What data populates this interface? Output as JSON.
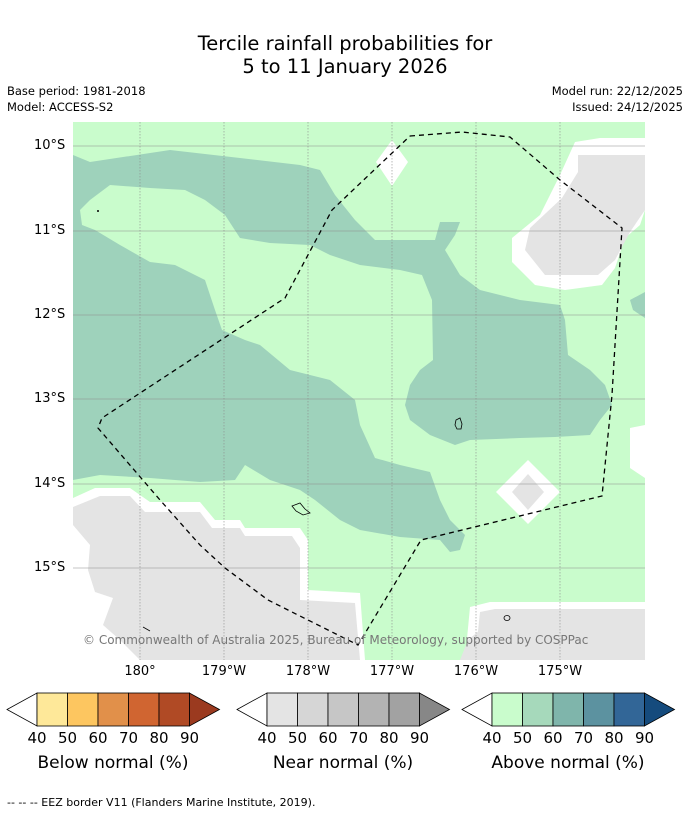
{
  "title_line1": "Tercile rainfall probabilities for",
  "title_line2": "5 to 11 January 2026",
  "base_period": "Base period: 1981-2018",
  "model": "Model: ACCESS-S2",
  "model_run": "Model run: 22/12/2025",
  "issued": "Issued: 24/12/2025",
  "lat_labels": [
    "10°S",
    "11°S",
    "12°S",
    "13°S",
    "14°S",
    "15°S"
  ],
  "lon_labels": [
    "180°",
    "179°W",
    "178°W",
    "177°W",
    "176°W",
    "175°W"
  ],
  "copyright": "© Commonwealth of Australia 2025, Bureau of Meteorology, supported by COSPPac",
  "colorbars": [
    {
      "title": "Below normal (%)",
      "ticks": [
        "40",
        "50",
        "60",
        "70",
        "80",
        "90"
      ],
      "colors": [
        "#fee899",
        "#fdc660",
        "#e1904a",
        "#d06531",
        "#b04a25",
        "#9b3a1f"
      ]
    },
    {
      "title": "Near normal (%)",
      "ticks": [
        "40",
        "50",
        "60",
        "70",
        "80",
        "90"
      ],
      "colors": [
        "#e4e4e4",
        "#d6d6d6",
        "#c6c6c6",
        "#b3b3b3",
        "#a2a2a2",
        "#878787"
      ]
    },
    {
      "title": "Above normal (%)",
      "ticks": [
        "40",
        "50",
        "60",
        "70",
        "80",
        "90"
      ],
      "colors": [
        "#c9fccc",
        "#a6d9bb",
        "#7fb5ab",
        "#5c92a0",
        "#326697",
        "#154b7d"
      ]
    }
  ],
  "footnote": "--  --  -- EEZ border V11 (Flanders Marine Institute, 2019).",
  "map_colors": {
    "above_40": "#c9fccc",
    "above_50": "#9ed2bb",
    "near_40": "#e4e4e4",
    "no_data": "#ffffff"
  }
}
